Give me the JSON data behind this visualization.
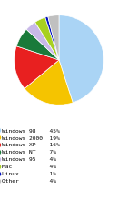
{
  "labels": [
    "Windows 98",
    "Windows 2000",
    "Windows XP",
    "Windows NT",
    "Windows 95",
    "Mac",
    "Linux",
    "Other"
  ],
  "values": [
    45,
    19,
    16,
    7,
    4,
    4,
    1,
    4
  ],
  "colors": [
    "#aad4f5",
    "#f5c400",
    "#e82020",
    "#1a7a3a",
    "#c8b8e8",
    "#a8d020",
    "#0010c0",
    "#c0c0c0"
  ],
  "legend_labels": [
    "Windows 98",
    "Windows 2000",
    "Windows XP",
    "Windows NT",
    "Windows 95",
    "Mac",
    "Linux",
    "Other"
  ],
  "legend_percents": [
    "45%",
    "19%",
    "16%",
    "7%",
    "4%",
    "4%",
    "1%",
    "4%"
  ],
  "startangle": 90,
  "counterclock": false,
  "figsize": [
    1.3,
    2.2
  ],
  "dpi": 100
}
